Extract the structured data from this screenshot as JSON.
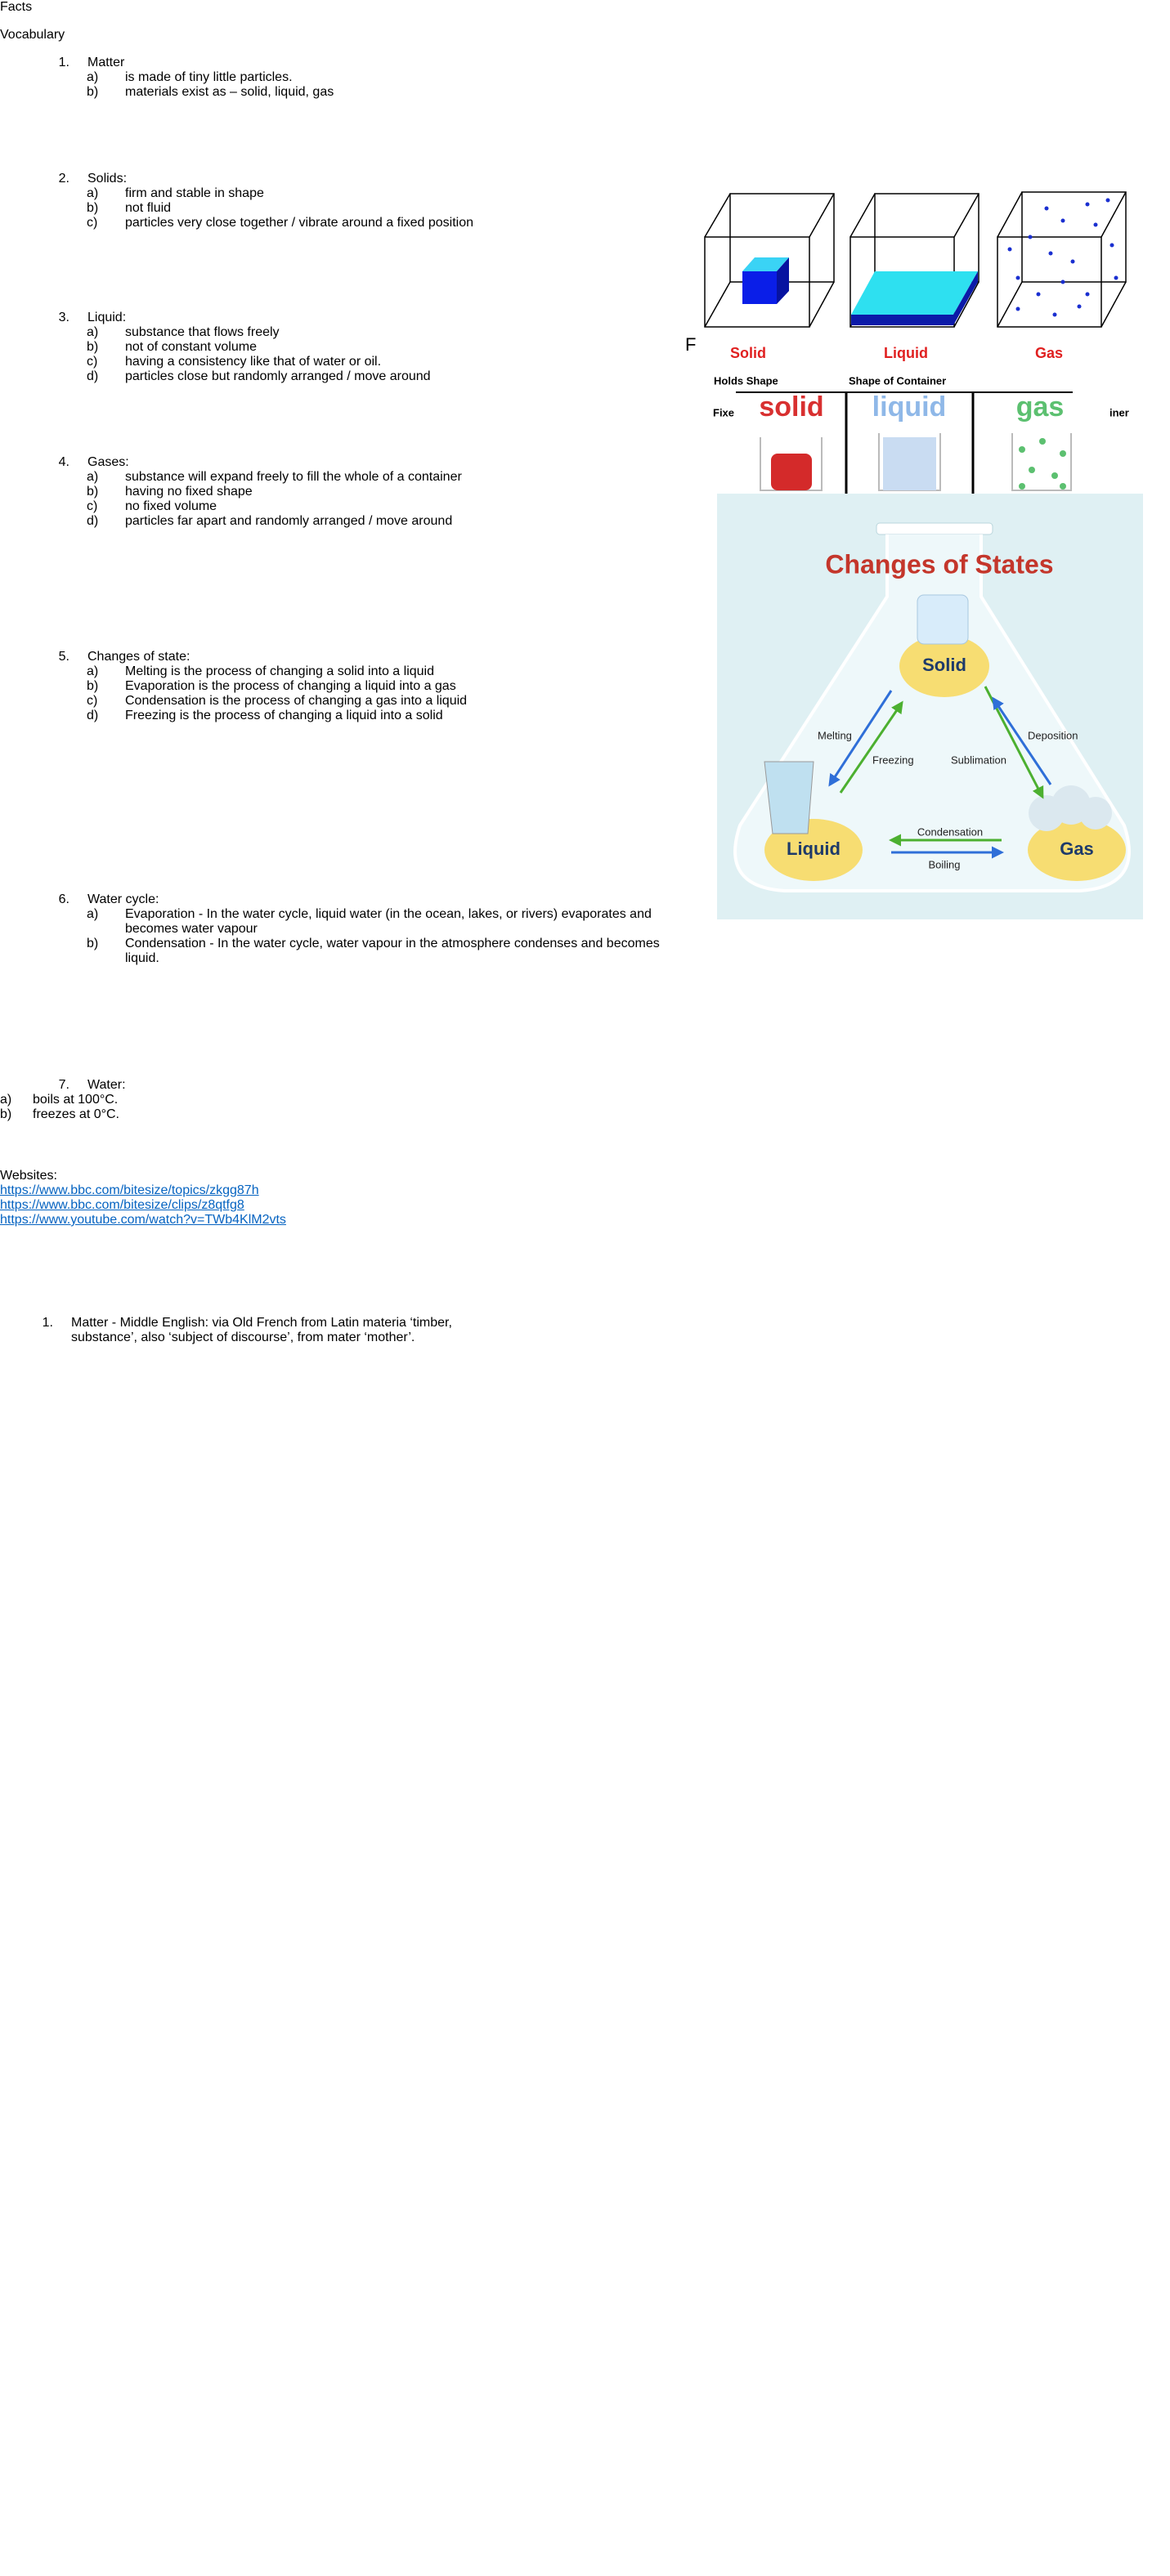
{
  "header": {
    "facts": "Facts",
    "vocabulary": "Vocabulary"
  },
  "facts": [
    {
      "number": "1.",
      "title": "Matter",
      "items": [
        {
          "letter": "a)",
          "text": "is made of tiny little particles."
        },
        {
          "letter": "b)",
          "text": "materials exist as – solid, liquid, gas"
        }
      ]
    },
    {
      "number": "2.",
      "title": "Solids:",
      "items": [
        {
          "letter": "a)",
          "text": "firm and stable in shape"
        },
        {
          "letter": "b)",
          "text": "not fluid"
        },
        {
          "letter": "c)",
          "text": "particles very close together / vibrate around a fixed position"
        }
      ]
    },
    {
      "number": "3.",
      "title": "Liquid:",
      "items": [
        {
          "letter": "a)",
          "text": "substance that flows freely"
        },
        {
          "letter": "b)",
          "text": "not of constant volume"
        },
        {
          "letter": "c)",
          "text": "having a consistency like that of water or oil."
        },
        {
          "letter": "d)",
          "text": "particles close but randomly arranged / move around"
        }
      ]
    },
    {
      "number": "4.",
      "title": "Gases:",
      "items": [
        {
          "letter": "a)",
          "text": "substance will expand freely to fill the whole of a container"
        },
        {
          "letter": "b)",
          "text": "having no fixed shape"
        },
        {
          "letter": "c)",
          "text": "no fixed volume"
        },
        {
          "letter": "d)",
          "text": "particles far apart and randomly arranged / move around"
        }
      ]
    },
    {
      "number": "5.",
      "title": "Changes of state:",
      "items": [
        {
          "letter": "a)",
          "text": "Melting is the process of changing a solid into a liquid"
        },
        {
          "letter": "b)",
          "text": "Evaporation is the process of changing a liquid into a gas"
        },
        {
          "letter": "c)",
          "text": "Condensation is the process of changing a gas into a liquid"
        },
        {
          "letter": "d)",
          "text": "Freezing is the process of changing a liquid into a solid"
        }
      ]
    },
    {
      "number": "6.",
      "title": "Water cycle:",
      "items": [
        {
          "letter": "a)",
          "text": "Evaporation - In the water cycle, liquid water (in the ocean, lakes, or rivers) evaporates and becomes water vapour"
        },
        {
          "letter": "b)",
          "text": "Condensation - In the water cycle, water vapour in the atmosphere condenses and becomes liquid."
        }
      ]
    },
    {
      "number": "7.",
      "title": "Water:",
      "items": [
        {
          "letter": "a)",
          "text": "boils at 100°C."
        },
        {
          "letter": "b)",
          "text": "freezes at 0°C."
        }
      ]
    }
  ],
  "websites": {
    "title": "Websites:",
    "links": [
      "https://www.bbc.com/bitesize/topics/zkgg87h",
      "https://www.bbc.com/bitesize/clips/z8qtfg8",
      "https://www.youtube.com/watch?v=TWb4KlM2vts"
    ]
  },
  "vocabulary": [
    {
      "number": "1.",
      "text": "Matter - Middle English: via Old French from Latin materia ‘timber, substance’, also ‘subject of discourse’, from mater ‘mother’."
    }
  ],
  "states_image": {
    "stray": "F",
    "labels": [
      "Solid",
      "Liquid",
      "Gas"
    ],
    "properties": [
      "Holds Shape",
      "Shape of Container"
    ],
    "cut_texts": [
      "Fixe",
      "iner"
    ],
    "beaker_labels": [
      "solid",
      "liquid",
      "gas"
    ]
  },
  "changes_image": {
    "title": "Changes of States",
    "nodes": [
      "Solid",
      "Liquid",
      "Gas"
    ],
    "arrows": [
      "Melting",
      "Freezing",
      "Sublimation",
      "Deposition",
      "Condensation",
      "Boiling"
    ]
  }
}
